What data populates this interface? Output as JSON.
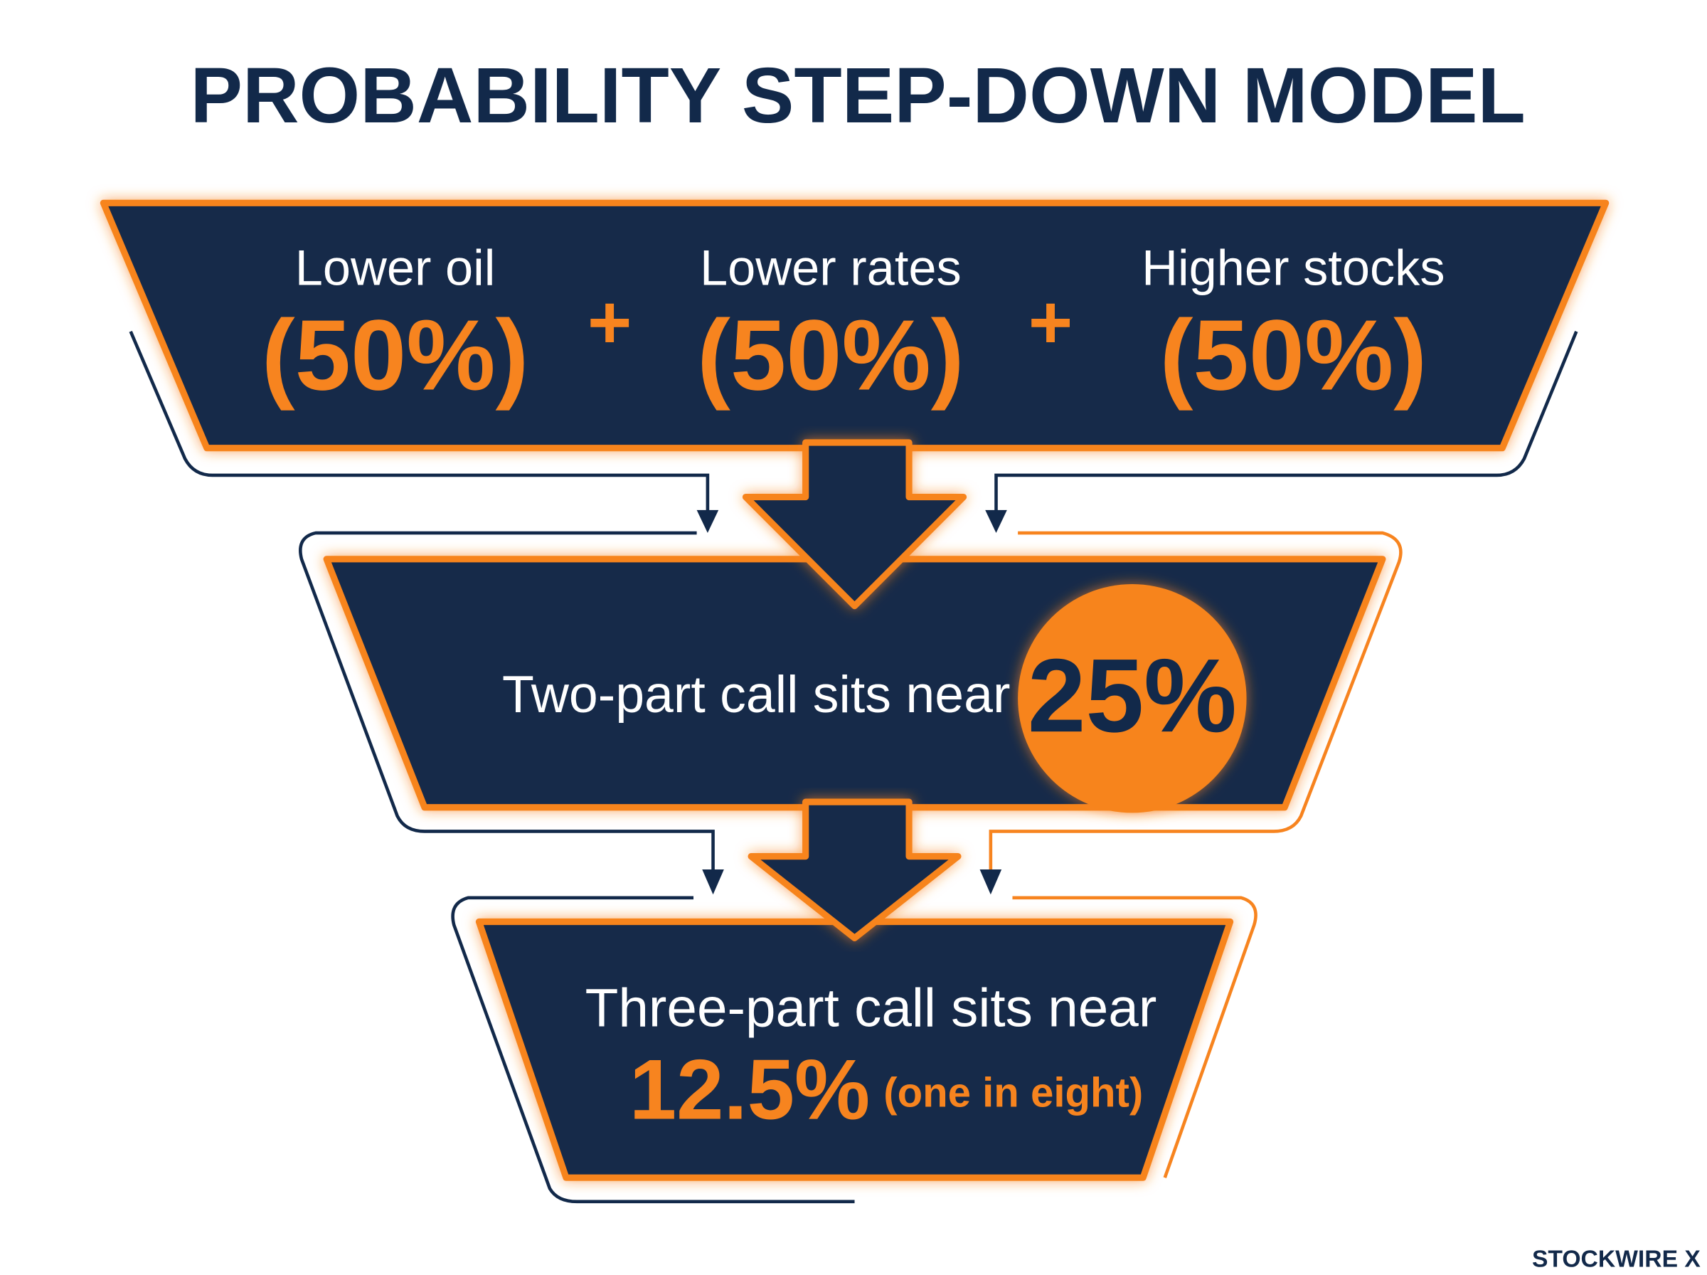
{
  "title": "PROBABILITY STEP-DOWN MODEL",
  "factors": [
    {
      "label": "Lower oil",
      "probability": "(50%)"
    },
    {
      "label": "Lower rates",
      "probability": "(50%)"
    },
    {
      "label": "Higher stocks",
      "probability": "(50%)"
    }
  ],
  "operators": [
    "+",
    "+"
  ],
  "stages": [
    {
      "text": "Two-part call sits near",
      "probability": "25%"
    },
    {
      "text": "Three-part call sits near",
      "probability": "12.5%",
      "note": "(one in eight)"
    }
  ],
  "brand": "STOCKWIRE X"
}
